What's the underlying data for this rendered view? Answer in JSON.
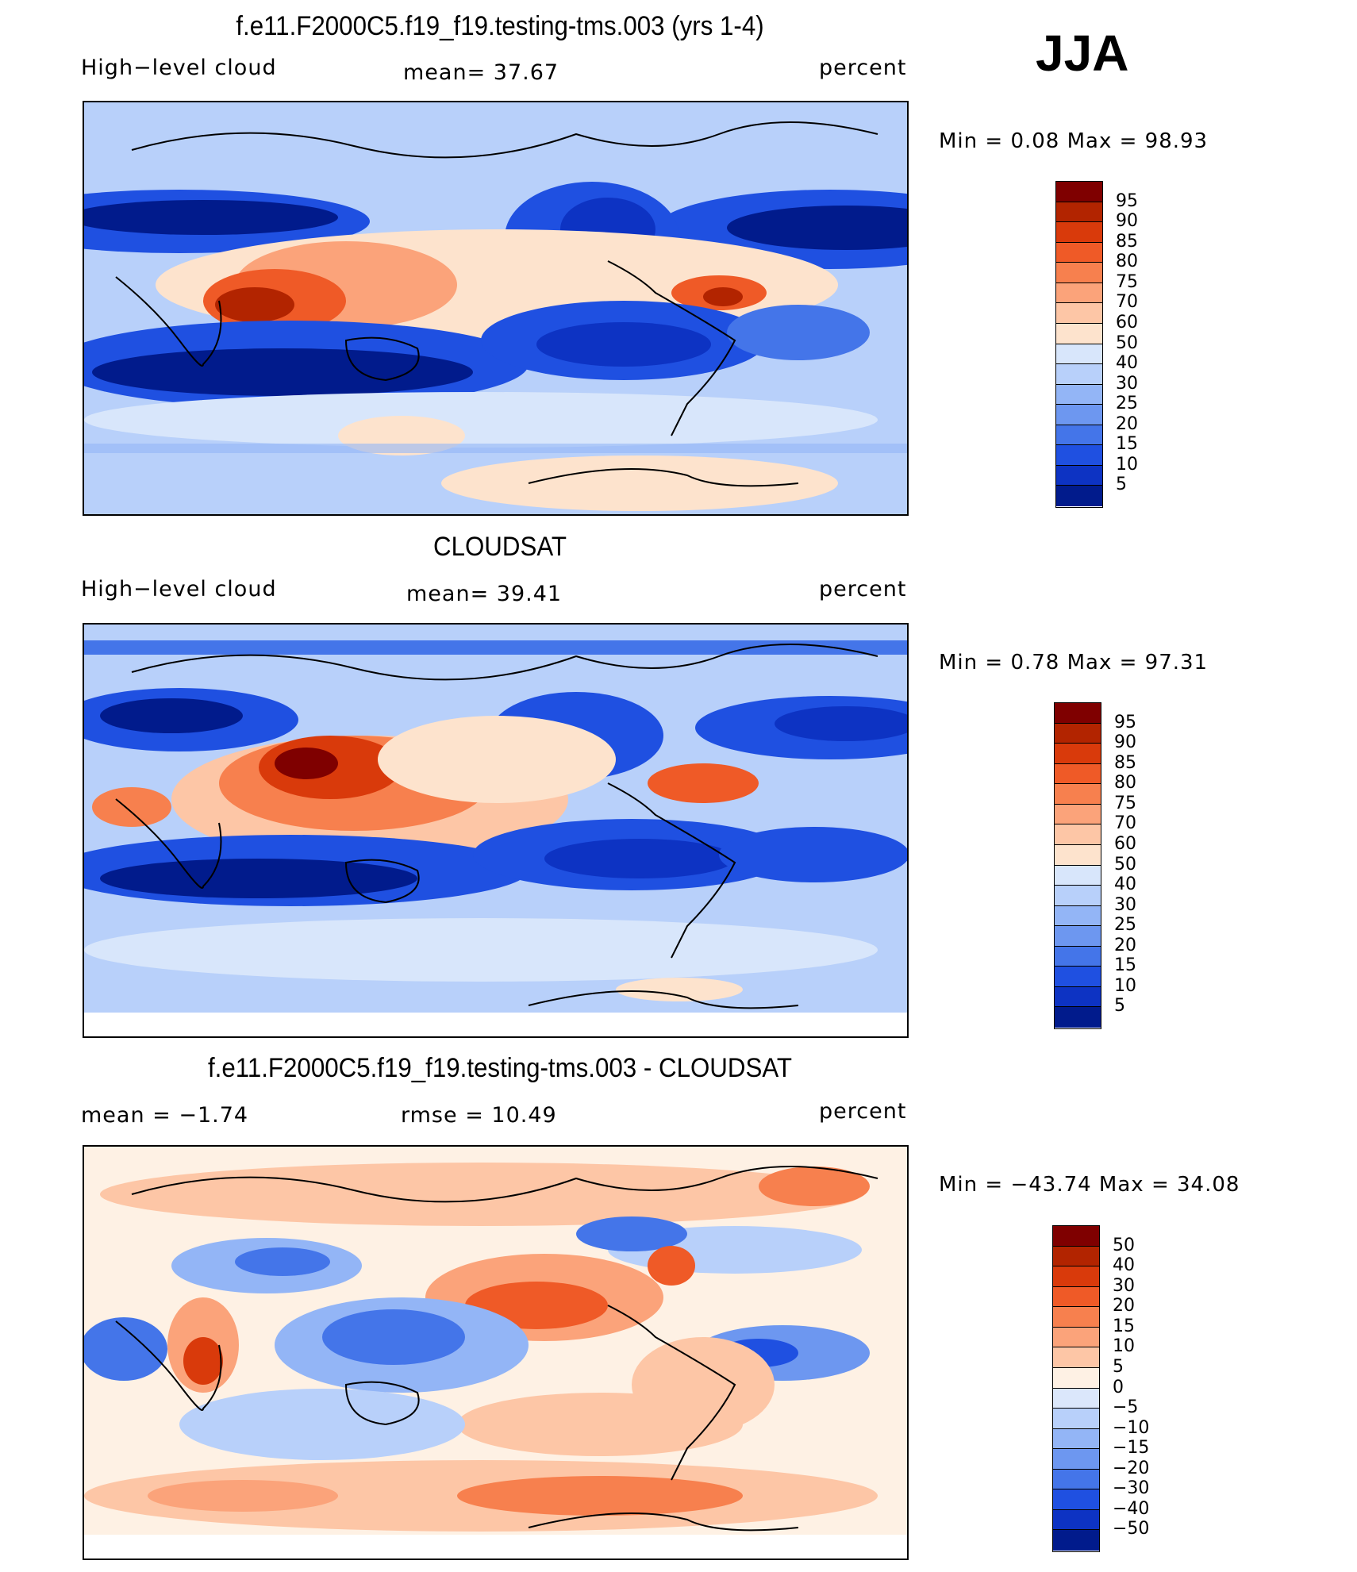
{
  "season": "JJA",
  "panels": [
    {
      "title": "f.e11.F2000C5.f19_f19.testing-tms.003 (yrs 1-4)",
      "left_label": "High−level cloud",
      "center_label": "mean=   37.67",
      "right_label": "percent",
      "minmax": "Min =    0.08  Max =   98.93",
      "colorbar": [
        "95",
        "90",
        "85",
        "80",
        "75",
        "70",
        "60",
        "50",
        "40",
        "30",
        "25",
        "20",
        "15",
        "10",
        "5"
      ],
      "colors": [
        "#7f0000",
        "#b22400",
        "#d93a0b",
        "#ef5a27",
        "#f7804e",
        "#fba37a",
        "#fdc6a6",
        "#fde3cd",
        "#d8e6fb",
        "#b8d0fa",
        "#93b5f6",
        "#6d97f0",
        "#4475e9",
        "#1f50e1",
        "#0d33c3",
        "#011b8c"
      ]
    },
    {
      "title": "CLOUDSAT",
      "left_label": "High−level cloud",
      "center_label": "mean=   39.41",
      "right_label": "percent",
      "minmax": "Min =    0.78  Max =   97.31",
      "colorbar": [
        "95",
        "90",
        "85",
        "80",
        "75",
        "70",
        "60",
        "50",
        "40",
        "30",
        "25",
        "20",
        "15",
        "10",
        "5"
      ],
      "colors": [
        "#7f0000",
        "#b22400",
        "#d93a0b",
        "#ef5a27",
        "#f7804e",
        "#fba37a",
        "#fdc6a6",
        "#fde3cd",
        "#d8e6fb",
        "#b8d0fa",
        "#93b5f6",
        "#6d97f0",
        "#4475e9",
        "#1f50e1",
        "#0d33c3",
        "#011b8c"
      ]
    },
    {
      "title": "f.e11.F2000C5.f19_f19.testing-tms.003 - CLOUDSAT",
      "left_label": "mean =   −1.74",
      "center_label": "rmse =   10.49",
      "right_label": "percent",
      "minmax": "Min = −43.74  Max =   34.08",
      "colorbar": [
        "50",
        "40",
        "30",
        "20",
        "15",
        "10",
        "5",
        "0",
        "−5",
        "−10",
        "−15",
        "−20",
        "−30",
        "−40",
        "−50"
      ],
      "colors": [
        "#7f0000",
        "#b22400",
        "#d93a0b",
        "#ef5a27",
        "#f7804e",
        "#fba37a",
        "#fdc6a6",
        "#fef1e4",
        "#dbe7fb",
        "#b8d0fa",
        "#93b5f6",
        "#6d97f0",
        "#4475e9",
        "#1f50e1",
        "#0d33c3",
        "#011b8c"
      ]
    }
  ],
  "chart_data": [
    {
      "type": "heatmap",
      "title": "f.e11.F2000C5.f19_f19.testing-tms.003 (yrs 1-4)",
      "variable": "High−level cloud",
      "units": "percent",
      "mean": 37.67,
      "min": 0.08,
      "max": 98.93,
      "levels": [
        5,
        10,
        15,
        20,
        25,
        30,
        40,
        50,
        60,
        70,
        75,
        80,
        85,
        90,
        95
      ]
    },
    {
      "type": "heatmap",
      "title": "CLOUDSAT",
      "variable": "High−level cloud",
      "units": "percent",
      "mean": 39.41,
      "min": 0.78,
      "max": 97.31,
      "levels": [
        5,
        10,
        15,
        20,
        25,
        30,
        40,
        50,
        60,
        70,
        75,
        80,
        85,
        90,
        95
      ]
    },
    {
      "type": "heatmap",
      "title": "f.e11.F2000C5.f19_f19.testing-tms.003 - CLOUDSAT",
      "units": "percent",
      "mean": -1.74,
      "rmse": 10.49,
      "min": -43.74,
      "max": 34.08,
      "levels": [
        -50,
        -40,
        -30,
        -20,
        -15,
        -10,
        -5,
        0,
        5,
        10,
        15,
        20,
        30,
        40,
        50
      ]
    }
  ]
}
